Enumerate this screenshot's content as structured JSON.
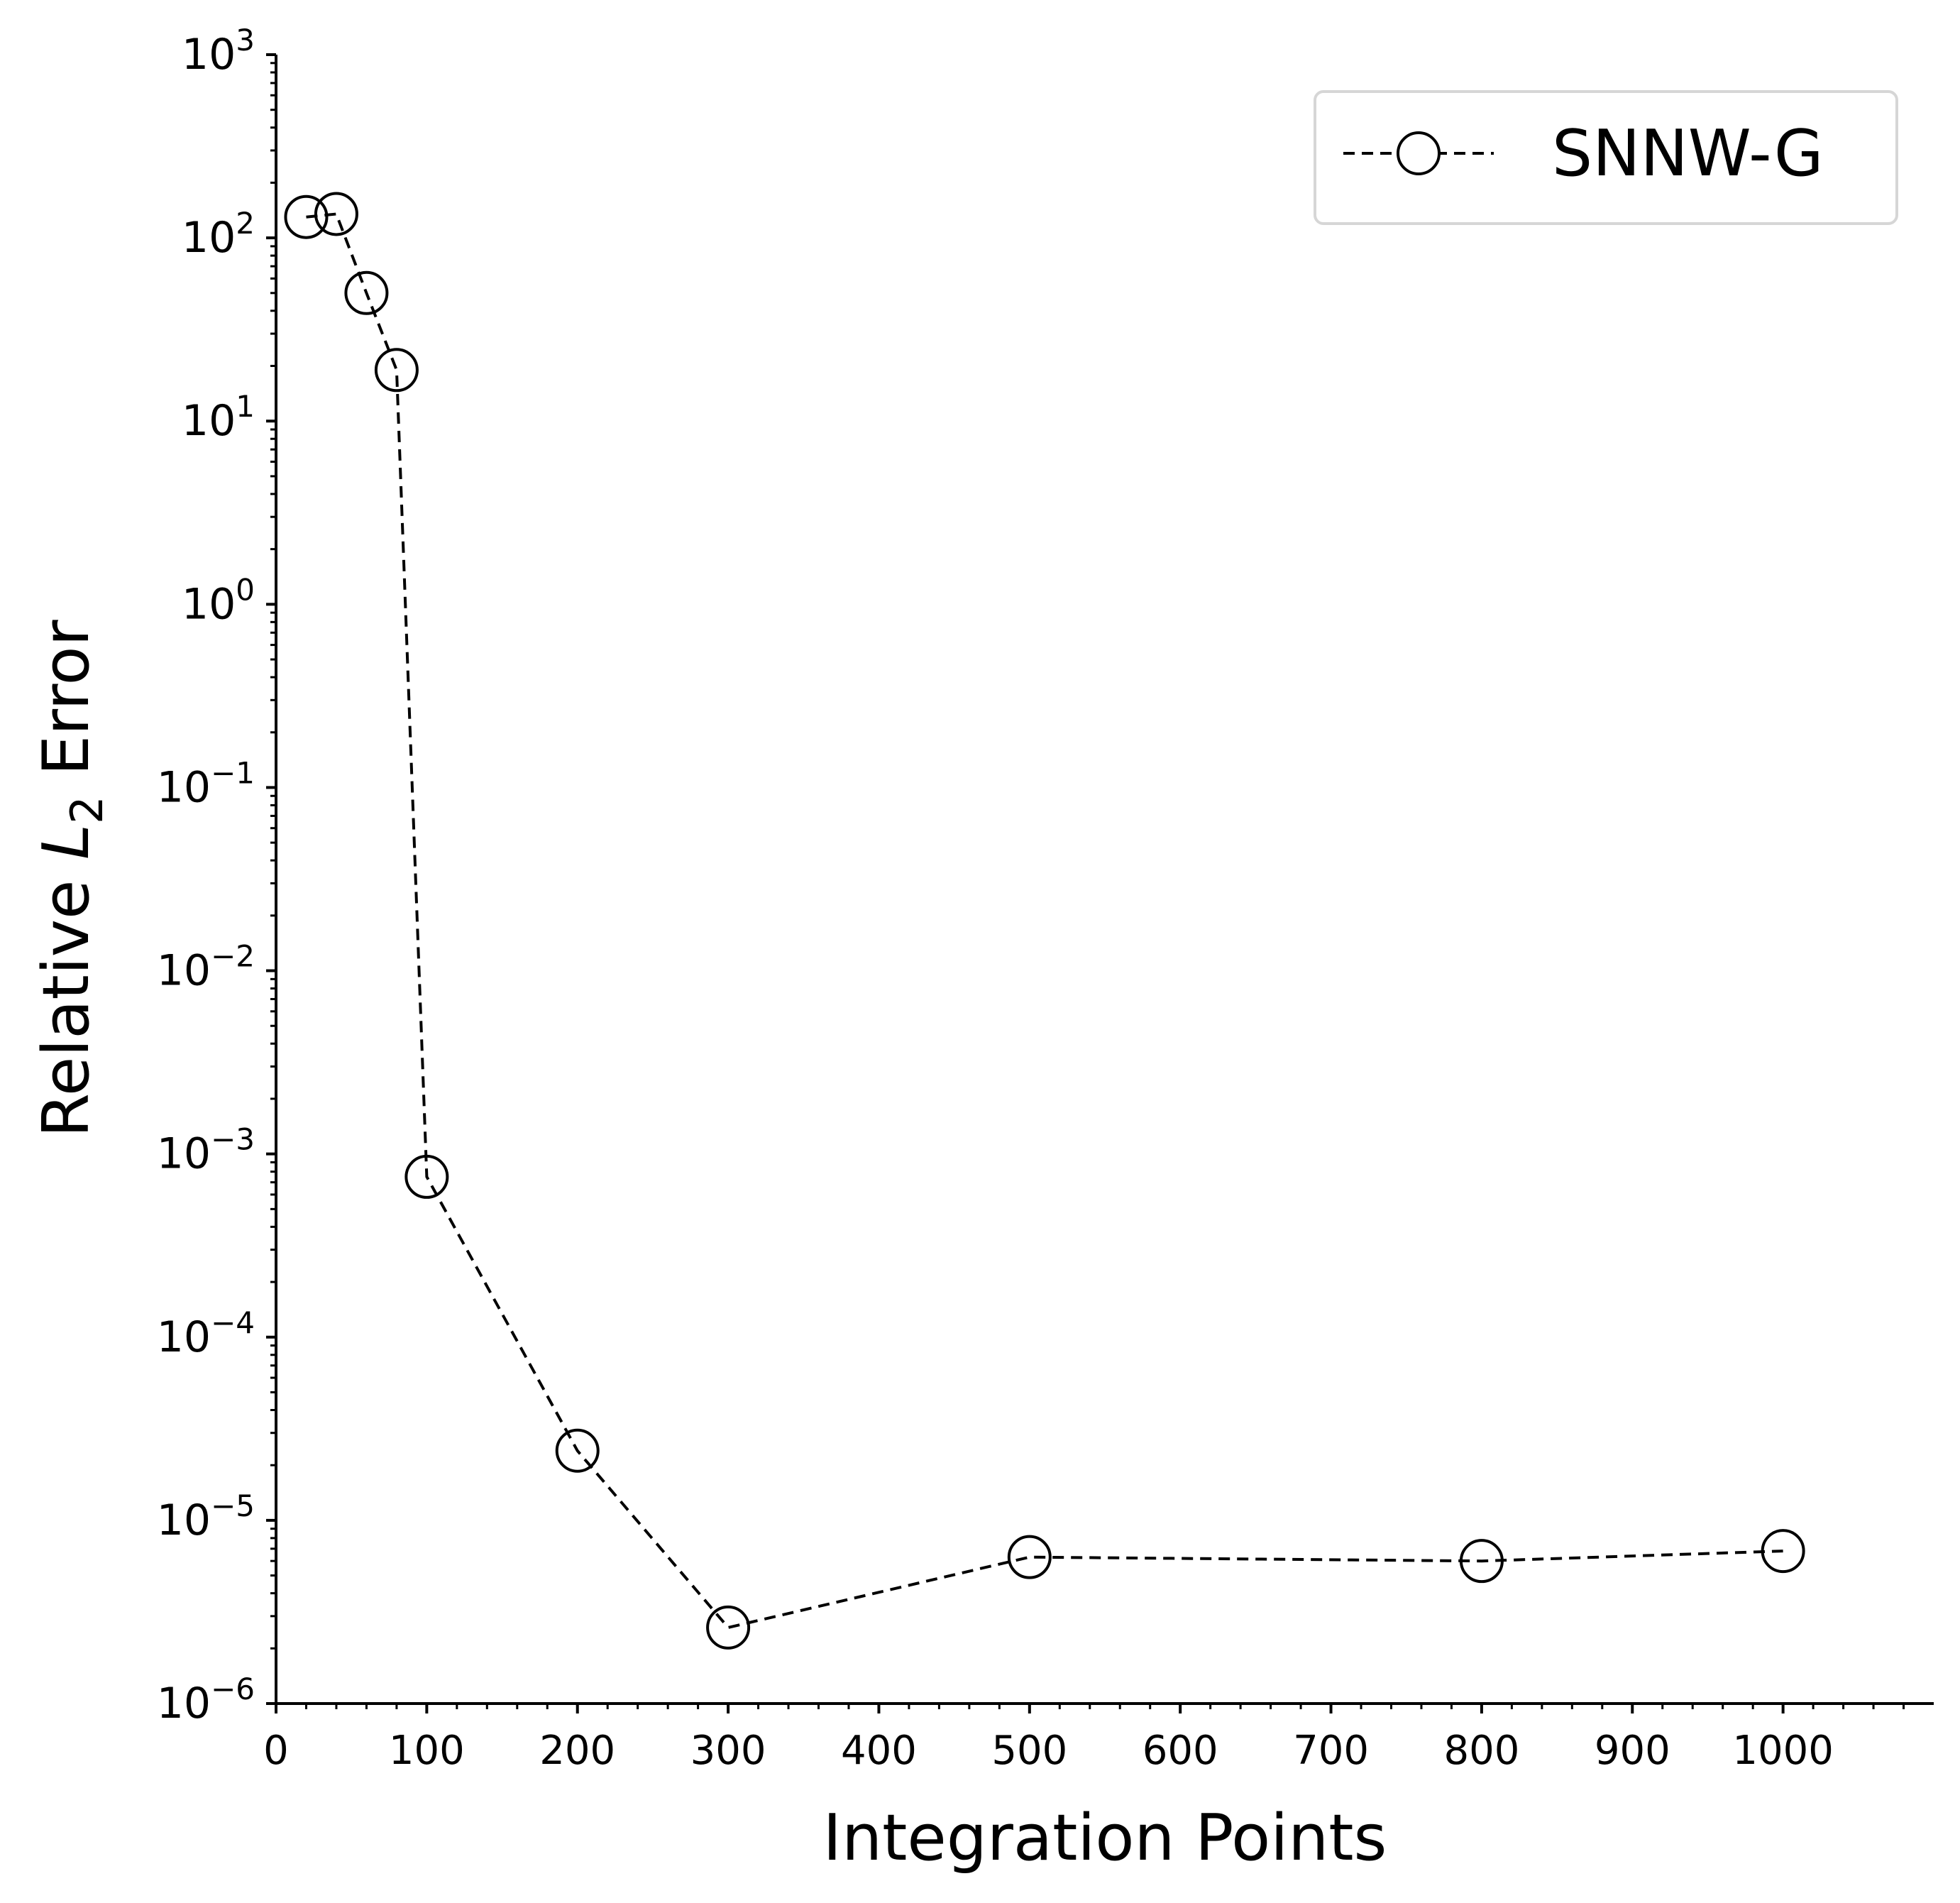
{
  "chart_data": {
    "type": "line",
    "xlabel": "Integration Points",
    "ylabel": {
      "prefix": "Relative ",
      "symbol": "L",
      "subscript": "2",
      "suffix": " Error"
    },
    "yscale": "log",
    "xlim": [
      0,
      1100
    ],
    "ylim": [
      1e-06,
      1000
    ],
    "x_ticks": [
      0,
      100,
      200,
      300,
      400,
      500,
      600,
      700,
      800,
      900,
      1000
    ],
    "y_ticks": [
      {
        "base": "10",
        "exp": "3",
        "value": 1000
      },
      {
        "base": "10",
        "exp": "2",
        "value": 100
      },
      {
        "base": "10",
        "exp": "1",
        "value": 10
      },
      {
        "base": "10",
        "exp": "0",
        "value": 1
      },
      {
        "base": "10",
        "exp": "−1",
        "value": 0.1
      },
      {
        "base": "10",
        "exp": "−2",
        "value": 0.01
      },
      {
        "base": "10",
        "exp": "−3",
        "value": 0.001
      },
      {
        "base": "10",
        "exp": "−4",
        "value": 0.0001
      },
      {
        "base": "10",
        "exp": "−5",
        "value": 1e-05
      },
      {
        "base": "10",
        "exp": "−6",
        "value": 1e-06
      }
    ],
    "grid": false,
    "legend_position": "top-right",
    "series": [
      {
        "name": "SNNW-G",
        "color": "#000000",
        "line_style": "dashed",
        "marker": "open-circle",
        "x": [
          20,
          40,
          60,
          80,
          100,
          200,
          300,
          500,
          800,
          1000
        ],
        "y": [
          130,
          135,
          50,
          19,
          0.00075,
          2.4e-05,
          2.6e-06,
          6.3e-06,
          6e-06,
          6.8e-06
        ]
      }
    ]
  }
}
